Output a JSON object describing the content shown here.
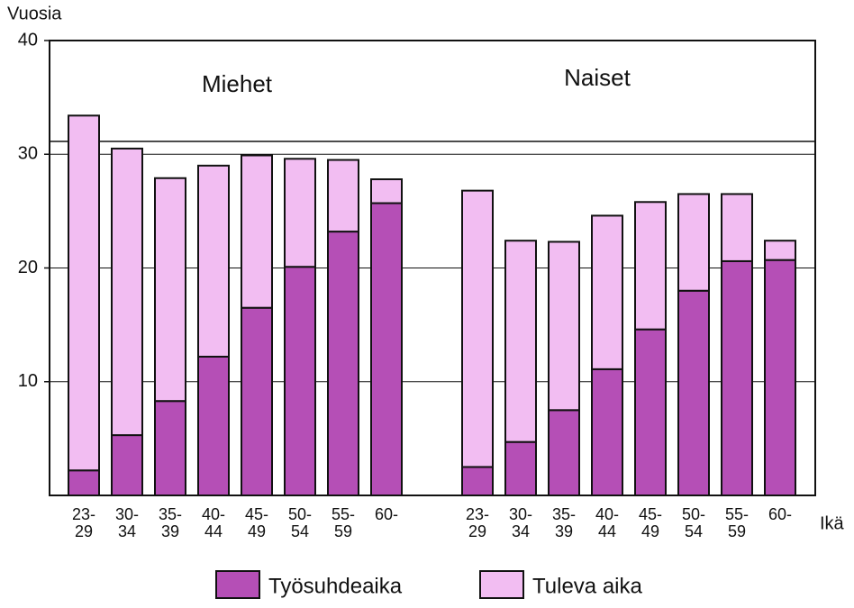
{
  "chart_data": {
    "type": "bar",
    "stacked": true,
    "y_label": "Vuosia",
    "x_label": "Ikä",
    "ylim": [
      0,
      40
    ],
    "yticks": [
      10,
      20,
      30,
      40
    ],
    "grid": true,
    "groups": [
      {
        "name": "Miehet",
        "categories": [
          "23-\n29",
          "30-\n34",
          "35-\n39",
          "40-\n44",
          "45-\n49",
          "50-\n54",
          "55-\n59",
          "60-"
        ],
        "series": [
          {
            "name": "Työsuhdeaika",
            "color": "#b54fb6",
            "values": [
              2.2,
              5.3,
              8.3,
              12.2,
              16.5,
              20.1,
              23.2,
              25.7
            ]
          },
          {
            "name": "Tuleva aika",
            "color": "#f2bdf2",
            "values": [
              31.2,
              25.2,
              19.6,
              16.8,
              13.4,
              9.5,
              6.3,
              2.1
            ]
          }
        ]
      },
      {
        "name": "Naiset",
        "categories": [
          "23-\n29",
          "30-\n34",
          "35-\n39",
          "40-\n44",
          "45-\n49",
          "50-\n54",
          "55-\n59",
          "60-"
        ],
        "series": [
          {
            "name": "Työsuhdeaika",
            "color": "#b54fb6",
            "values": [
              2.5,
              4.7,
              7.5,
              11.1,
              14.6,
              18.0,
              20.6,
              20.7
            ]
          },
          {
            "name": "Tuleva aika",
            "color": "#f2bdf2",
            "values": [
              24.3,
              17.7,
              14.8,
              13.5,
              11.2,
              8.5,
              5.9,
              1.7
            ]
          }
        ]
      }
    ]
  }
}
